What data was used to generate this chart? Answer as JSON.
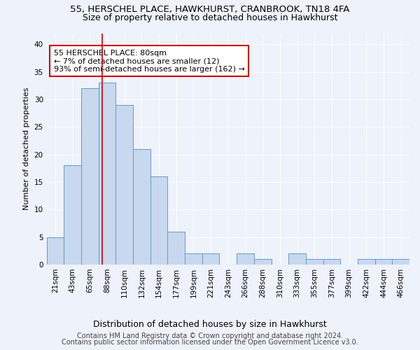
{
  "title1": "55, HERSCHEL PLACE, HAWKHURST, CRANBROOK, TN18 4FA",
  "title2": "Size of property relative to detached houses in Hawkhurst",
  "xlabel": "Distribution of detached houses by size in Hawkhurst",
  "ylabel": "Number of detached properties",
  "bins": [
    "21sqm",
    "43sqm",
    "65sqm",
    "88sqm",
    "110sqm",
    "132sqm",
    "154sqm",
    "177sqm",
    "199sqm",
    "221sqm",
    "243sqm",
    "266sqm",
    "288sqm",
    "310sqm",
    "333sqm",
    "355sqm",
    "377sqm",
    "399sqm",
    "422sqm",
    "444sqm",
    "466sqm"
  ],
  "values": [
    5,
    18,
    32,
    33,
    29,
    21,
    16,
    6,
    2,
    2,
    0,
    2,
    1,
    0,
    2,
    1,
    1,
    0,
    1,
    1,
    1
  ],
  "bar_color": "#c8d8ef",
  "bar_edge_color": "#6699cc",
  "property_line_color": "#cc0000",
  "property_line_x": 2.7,
  "annotation_text": "55 HERSCHEL PLACE: 80sqm\n← 7% of detached houses are smaller (12)\n93% of semi-detached houses are larger (162) →",
  "annotation_box_facecolor": "#ffffff",
  "annotation_box_edgecolor": "#cc0000",
  "ylim": [
    0,
    42
  ],
  "yticks": [
    0,
    5,
    10,
    15,
    20,
    25,
    30,
    35,
    40
  ],
  "footer1": "Contains HM Land Registry data © Crown copyright and database right 2024.",
  "footer2": "Contains public sector information licensed under the Open Government Licence v3.0.",
  "background_color": "#eef2fa",
  "grid_color": "#ffffff",
  "title1_fontsize": 9.5,
  "title2_fontsize": 9,
  "ylabel_fontsize": 8,
  "xlabel_fontsize": 9,
  "tick_fontsize": 7.5,
  "annotation_fontsize": 8,
  "footer_fontsize": 7
}
